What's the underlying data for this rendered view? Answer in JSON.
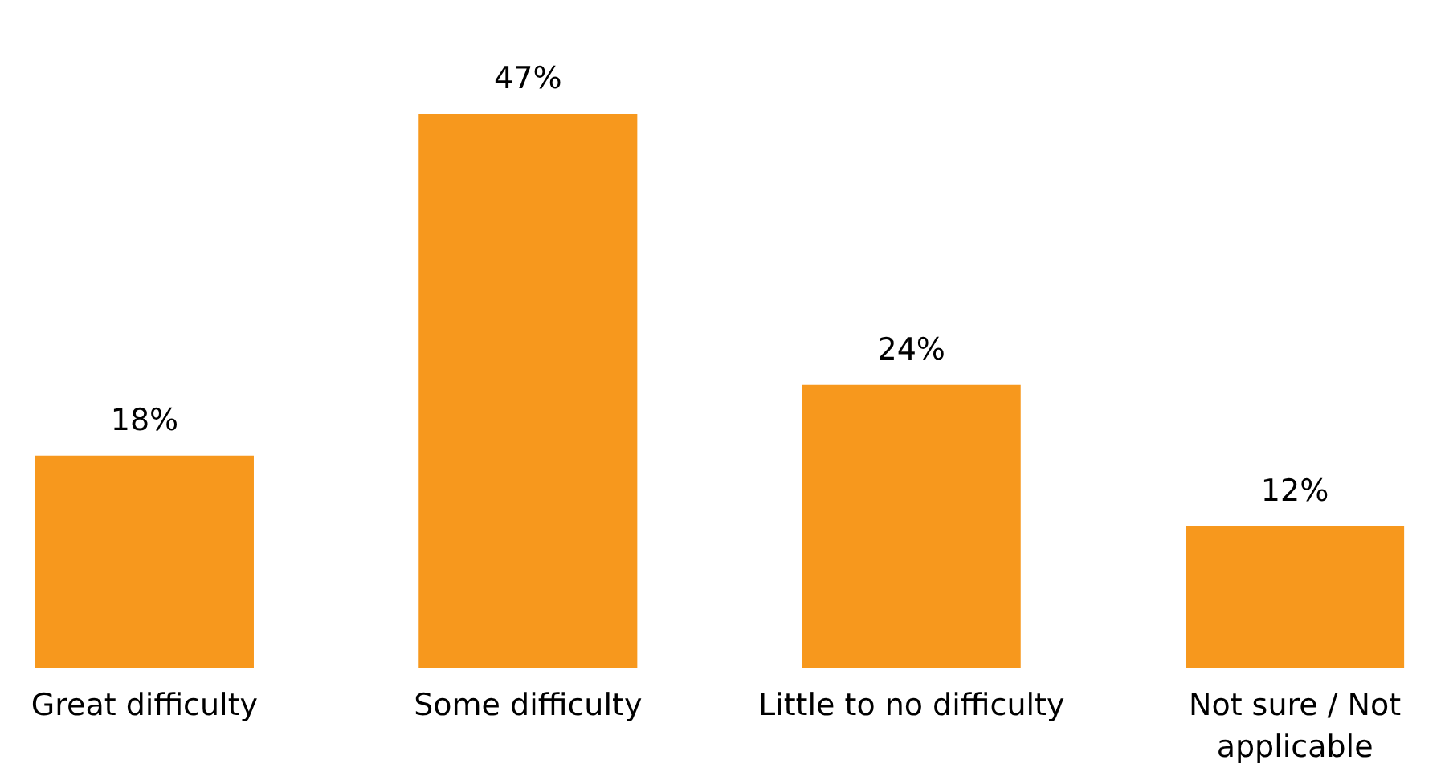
{
  "chart_data": {
    "type": "bar",
    "categories": [
      "Great difficulty",
      "Some difficulty",
      "Little to no difficulty",
      "Not sure / Not applicable"
    ],
    "values": [
      18,
      47,
      24,
      12
    ],
    "value_labels": [
      "18%",
      "47%",
      "24%",
      "12%"
    ],
    "color": "#f7981d",
    "grid": false
  }
}
